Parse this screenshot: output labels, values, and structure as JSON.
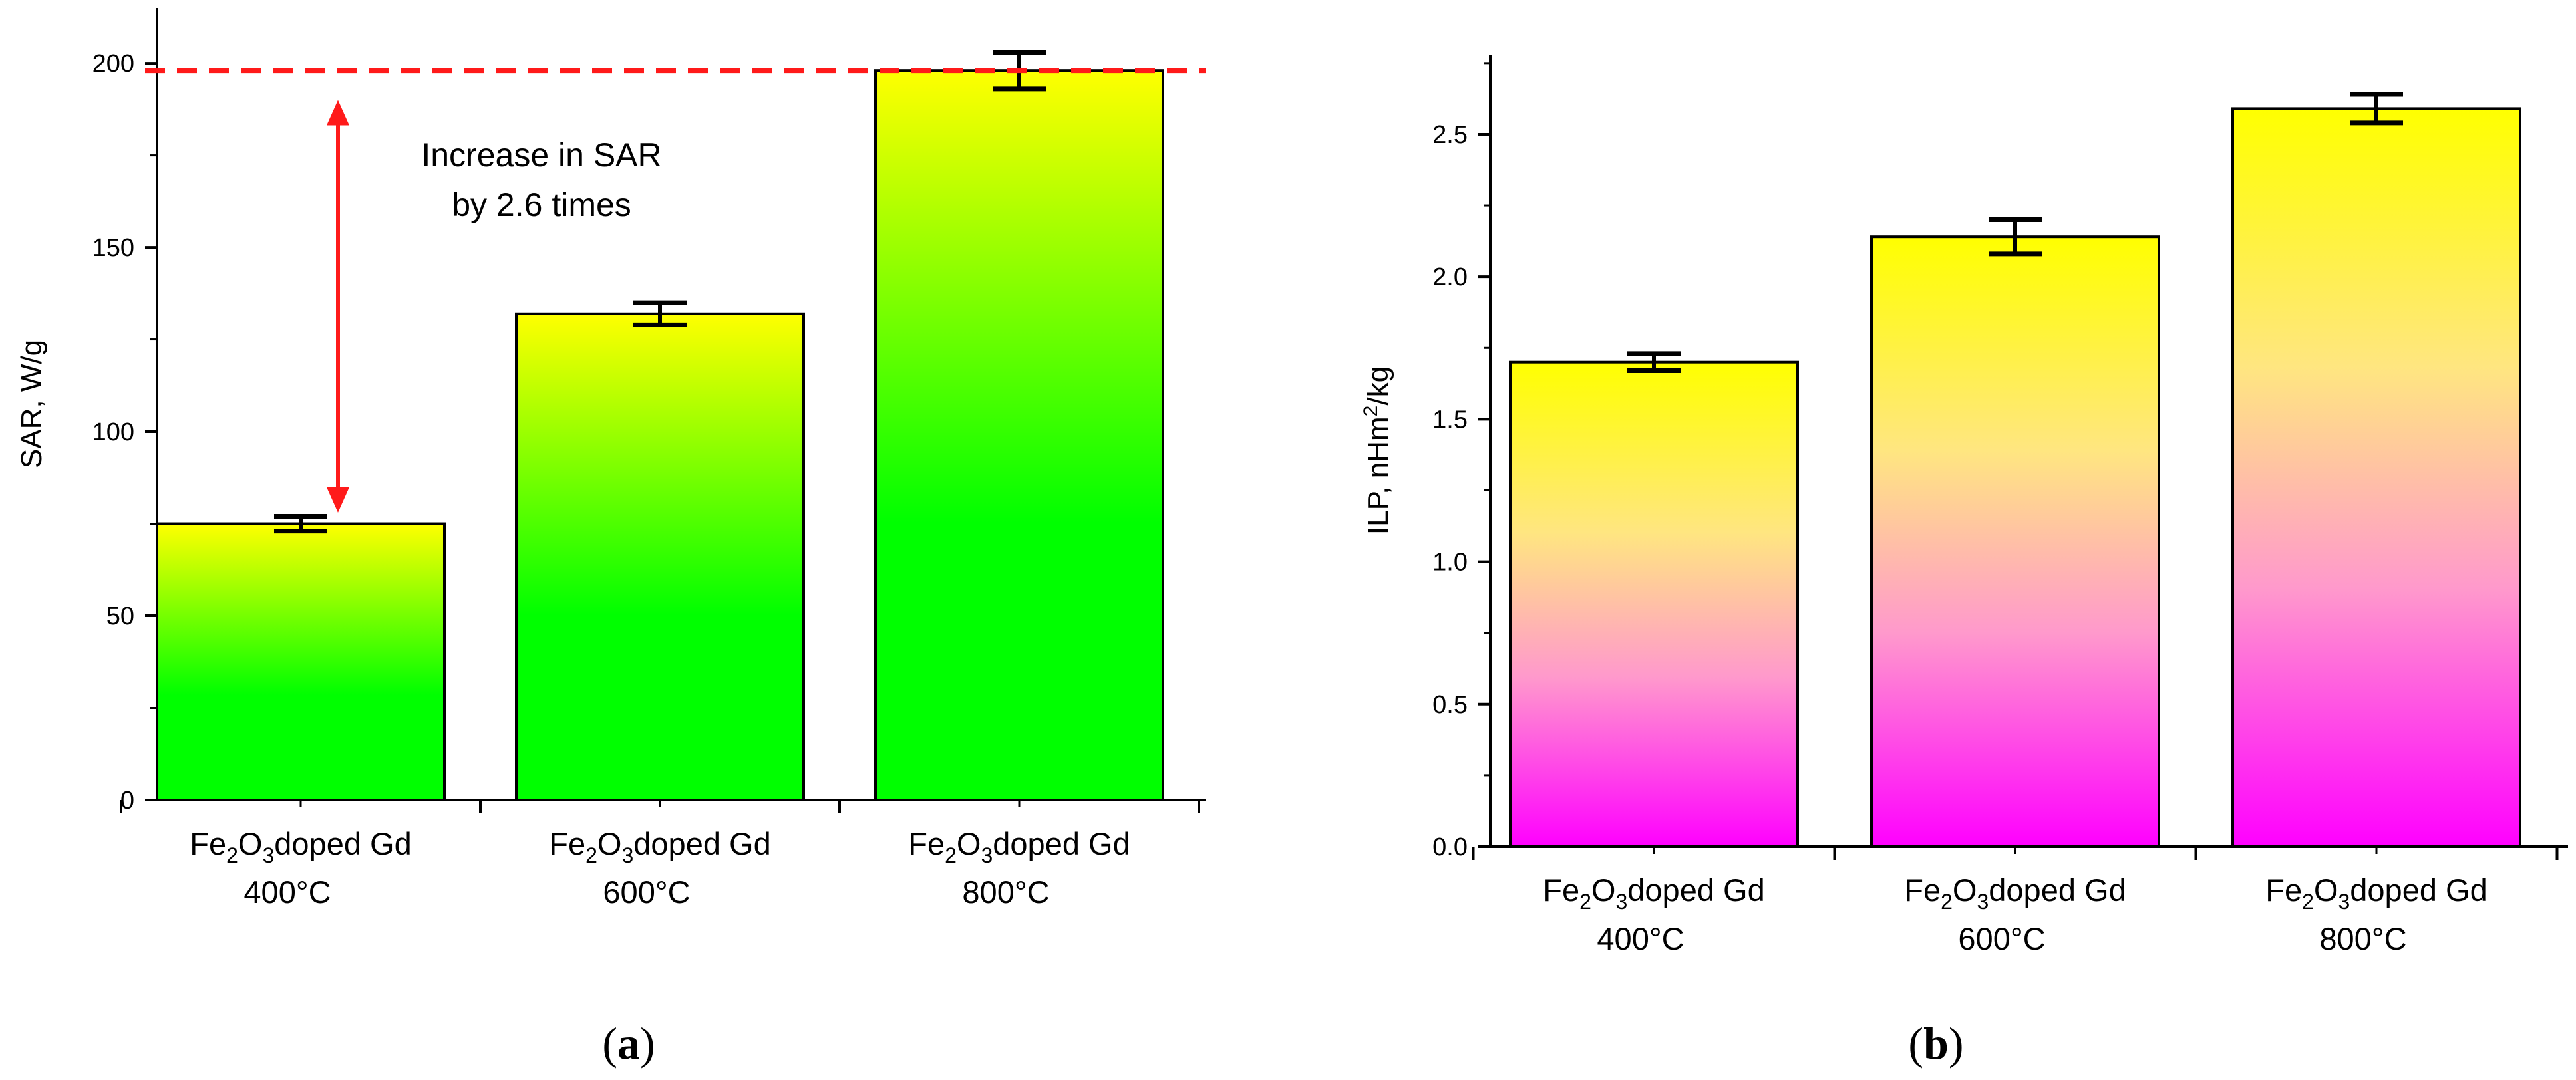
{
  "chart_data": [
    {
      "type": "bar",
      "panel_label": "a",
      "ylabel": "SAR, W/g",
      "ylim": [
        0,
        215
      ],
      "yticks": [
        0,
        50,
        100,
        150,
        200
      ],
      "tick_labels": [
        "0",
        "50",
        "100",
        "150",
        "200"
      ],
      "categories": [
        {
          "line1": "Fe",
          "sub1": "2",
          "mid": "O",
          "sub2": "3",
          "rest": "doped Gd",
          "temp": "400°C"
        },
        {
          "line1": "Fe",
          "sub1": "2",
          "mid": "O",
          "sub2": "3",
          "rest": "doped Gd",
          "temp": "600°C"
        },
        {
          "line1": "Fe",
          "sub1": "2",
          "mid": "O",
          "sub2": "3",
          "rest": "doped Gd",
          "temp": "800°C"
        }
      ],
      "values": [
        75,
        132,
        198
      ],
      "errors": [
        2,
        3,
        5
      ],
      "reference_line": 198,
      "annotation": {
        "line1": "Increase in SAR",
        "line2": "by 2.6 times",
        "from": 75,
        "to": 198
      },
      "gradient": {
        "top": "#ffff00",
        "bottom": "#00ff00"
      },
      "accent_color": "#ff1a1a"
    },
    {
      "type": "bar",
      "panel_label": "b",
      "ylabel": "ILP, nHm",
      "ylabel_sup": "2",
      "ylabel_rest": "/kg",
      "ylim": [
        0,
        2.78
      ],
      "yticks": [
        0,
        0.5,
        1.0,
        1.5,
        2.0,
        2.5
      ],
      "tick_labels": [
        "0.0",
        "0.5",
        "1.0",
        "1.5",
        "2.0",
        "2.5"
      ],
      "categories": [
        {
          "line1": "Fe",
          "sub1": "2",
          "mid": "O",
          "sub2": "3",
          "rest": "doped Gd",
          "temp": "400°C"
        },
        {
          "line1": "Fe",
          "sub1": "2",
          "mid": "O",
          "sub2": "3",
          "rest": "doped Gd",
          "temp": "600°C"
        },
        {
          "line1": "Fe",
          "sub1": "2",
          "mid": "O",
          "sub2": "3",
          "rest": "doped Gd",
          "temp": "800°C"
        }
      ],
      "values": [
        1.7,
        2.14,
        2.59
      ],
      "errors": [
        0.03,
        0.06,
        0.05
      ],
      "gradient": {
        "top": "#ffff00",
        "bottom": "#ff00ff"
      }
    }
  ]
}
